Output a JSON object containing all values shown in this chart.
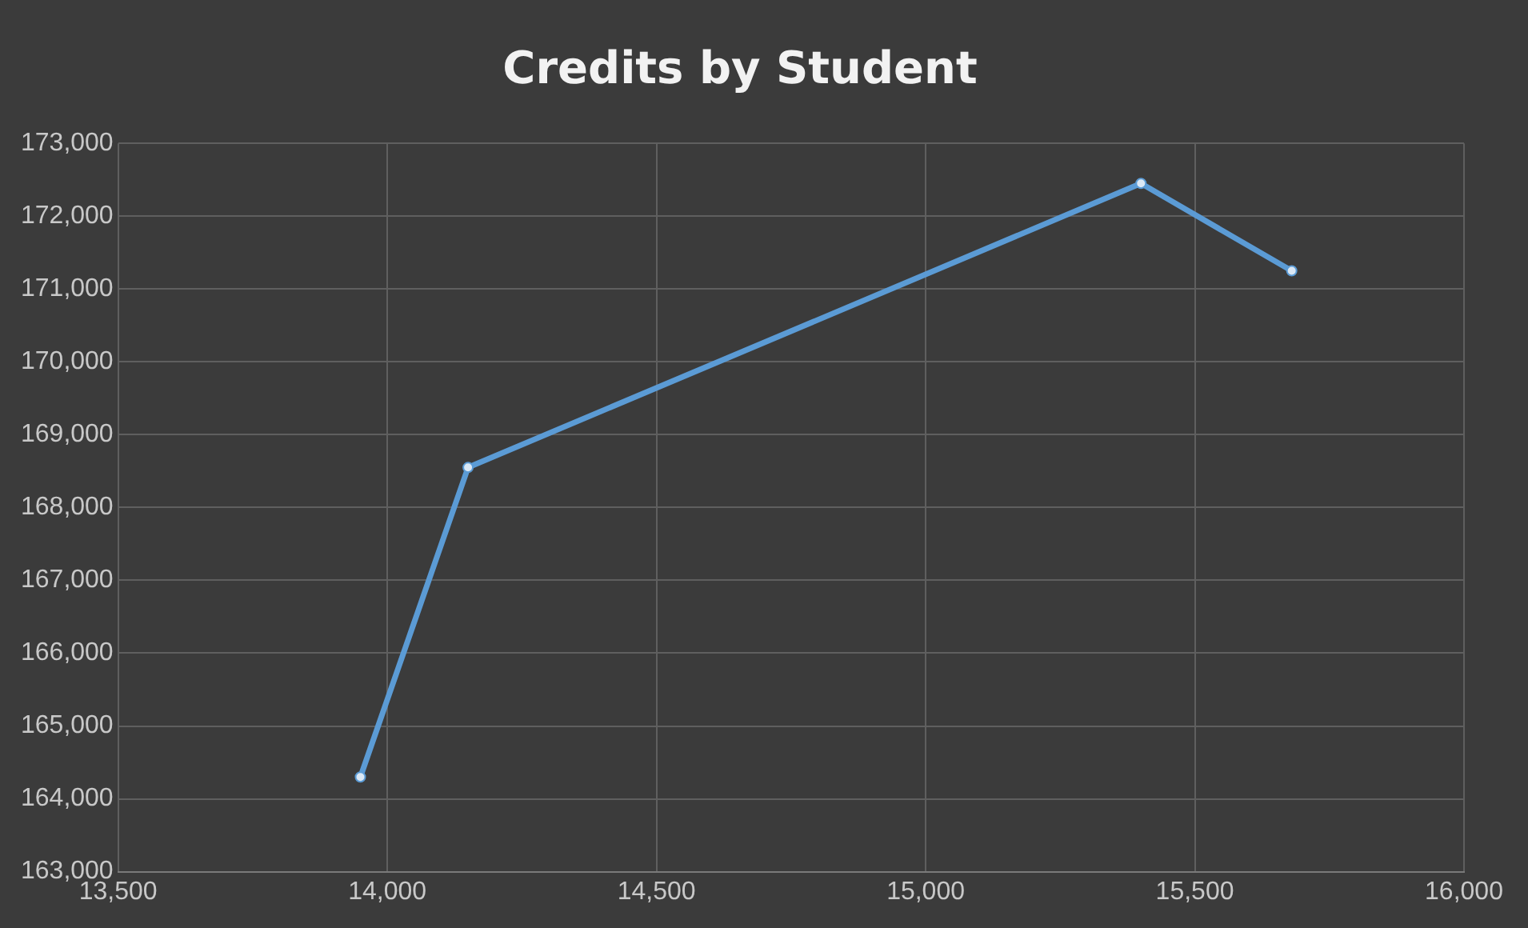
{
  "chart_data": {
    "type": "line",
    "title": "Credits by Student",
    "x": [
      13950,
      14150,
      15400,
      15680
    ],
    "series": [
      {
        "color": "#5b9bd5",
        "values": [
          164300,
          168550,
          172450,
          171250
        ]
      }
    ],
    "xlim": [
      13500,
      16000
    ],
    "xticks": [
      {
        "value": 13500,
        "label": "13,500"
      },
      {
        "value": 14000,
        "label": "14,000"
      },
      {
        "value": 14500,
        "label": "14,500"
      },
      {
        "value": 15000,
        "label": "15,000"
      },
      {
        "value": 15500,
        "label": "15,500"
      },
      {
        "value": 16000,
        "label": "16,000"
      }
    ],
    "ylim": [
      163000,
      173000
    ],
    "yticks": [
      {
        "value": 163000,
        "label": "163,000"
      },
      {
        "value": 164000,
        "label": "164,000"
      },
      {
        "value": 165000,
        "label": "165,000"
      },
      {
        "value": 166000,
        "label": "166,000"
      },
      {
        "value": 167000,
        "label": "167,000"
      },
      {
        "value": 168000,
        "label": "168,000"
      },
      {
        "value": 169000,
        "label": "169,000"
      },
      {
        "value": 170000,
        "label": "170,000"
      },
      {
        "value": 171000,
        "label": "171,000"
      },
      {
        "value": 172000,
        "label": "172,000"
      },
      {
        "value": 173000,
        "label": "173,000"
      }
    ],
    "grid": true,
    "legend": false,
    "marker": "circle",
    "line_style": "solid"
  }
}
